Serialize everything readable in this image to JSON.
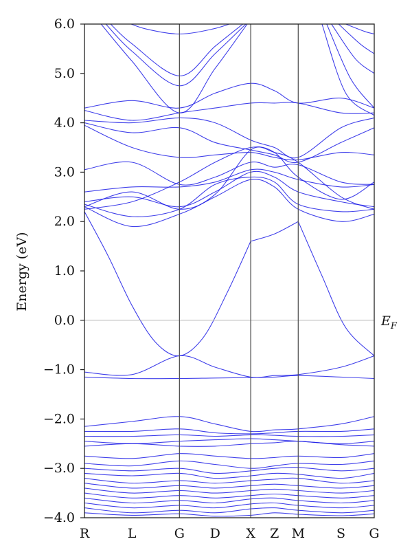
{
  "chart_data": {
    "type": "line",
    "title": "",
    "xlabel": "",
    "ylabel": "Energy (eV)",
    "ylim": [
      -4.0,
      6.0
    ],
    "yticks": [
      -4.0,
      -3.0,
      -2.0,
      -1.0,
      0.0,
      1.0,
      2.0,
      3.0,
      4.0,
      5.0,
      6.0
    ],
    "ytick_labels": [
      "−4.0",
      "−3.0",
      "−2.0",
      "−1.0",
      "0.0",
      "1.0",
      "2.0",
      "3.0",
      "4.0",
      "5.0",
      "6.0"
    ],
    "kpoints": [
      {
        "label": "R",
        "pos": 0.0
      },
      {
        "label": "L",
        "pos": 1.0
      },
      {
        "label": "G",
        "pos": 2.0
      },
      {
        "label": "D",
        "pos": 2.75
      },
      {
        "label": "X",
        "pos": 3.5
      },
      {
        "label": "Z",
        "pos": 4.0
      },
      {
        "label": "M",
        "pos": 4.5
      },
      {
        "label": "S",
        "pos": 5.4
      },
      {
        "label": "G",
        "pos": 6.1
      }
    ],
    "high_symmetry_lines": [
      2.0,
      3.5,
      4.5
    ],
    "fermi_level": 0.0,
    "fermi_label": "E_F",
    "grid": false,
    "band_color": "#1f1fe6",
    "series": [
      {
        "x": [
          0.0,
          0.5,
          1.0,
          1.5,
          2.0,
          2.5,
          3.0,
          3.5
        ],
        "y": [
          2.2,
          1.3,
          0.3,
          -0.45,
          -0.72,
          -0.35,
          0.55,
          1.6
        ]
      },
      {
        "x": [
          3.5,
          4.0,
          4.5
        ],
        "y": [
          1.6,
          1.75,
          2.0
        ]
      },
      {
        "x": [
          4.5,
          5.0,
          5.5,
          6.1
        ],
        "y": [
          2.0,
          0.9,
          -0.15,
          -0.72
        ]
      },
      {
        "x": [
          0.0,
          1.0,
          2.0,
          2.75,
          3.5,
          4.0,
          4.5,
          5.4,
          6.1
        ],
        "y": [
          -1.05,
          -1.1,
          -0.72,
          -0.95,
          -1.15,
          -1.12,
          -1.1,
          -0.95,
          -0.72
        ]
      },
      {
        "x": [
          0.0,
          1.0,
          2.0,
          2.75,
          3.5,
          4.0,
          4.5,
          5.4,
          6.1
        ],
        "y": [
          -1.15,
          -1.18,
          -1.18,
          -1.17,
          -1.16,
          -1.15,
          -1.12,
          -1.15,
          -1.18
        ]
      },
      {
        "x": [
          0.0,
          1.0,
          2.0,
          2.75,
          3.5,
          4.0,
          4.5,
          5.4,
          6.1
        ],
        "y": [
          -2.15,
          -2.05,
          -1.95,
          -2.1,
          -2.25,
          -2.22,
          -2.2,
          -2.1,
          -1.95
        ]
      },
      {
        "x": [
          0.0,
          1.0,
          2.0,
          2.75,
          3.5,
          4.0,
          4.5,
          5.4,
          6.1
        ],
        "y": [
          -2.25,
          -2.25,
          -2.2,
          -2.28,
          -2.3,
          -2.28,
          -2.25,
          -2.25,
          -2.2
        ]
      },
      {
        "x": [
          0.0,
          1.0,
          2.0,
          2.75,
          3.5,
          4.0,
          4.5,
          5.4,
          6.1
        ],
        "y": [
          -2.35,
          -2.35,
          -2.32,
          -2.35,
          -2.32,
          -2.33,
          -2.35,
          -2.35,
          -2.32
        ]
      },
      {
        "x": [
          0.0,
          1.0,
          2.0,
          2.75,
          3.5,
          4.0,
          4.5,
          5.4,
          6.1
        ],
        "y": [
          -2.45,
          -2.5,
          -2.45,
          -2.42,
          -2.4,
          -2.42,
          -2.45,
          -2.5,
          -2.45
        ]
      },
      {
        "x": [
          0.0,
          1.0,
          2.0,
          2.75,
          3.5,
          4.0,
          4.5,
          5.4,
          6.1
        ],
        "y": [
          -2.55,
          -2.5,
          -2.55,
          -2.55,
          -2.5,
          -2.48,
          -2.45,
          -2.52,
          -2.55
        ]
      },
      {
        "x": [
          0.0,
          1.0,
          2.0,
          2.75,
          3.5,
          4.0,
          4.5,
          5.4,
          6.1
        ],
        "y": [
          -2.75,
          -2.8,
          -2.7,
          -2.75,
          -2.8,
          -2.78,
          -2.75,
          -2.78,
          -2.7
        ]
      },
      {
        "x": [
          0.0,
          1.0,
          2.0,
          2.75,
          3.5,
          4.0,
          4.5,
          5.4,
          6.1
        ],
        "y": [
          -2.9,
          -2.95,
          -2.85,
          -2.92,
          -3.0,
          -2.95,
          -2.9,
          -2.92,
          -2.85
        ]
      },
      {
        "x": [
          0.0,
          1.0,
          2.0,
          2.75,
          3.5,
          4.0,
          4.5,
          5.4,
          6.1
        ],
        "y": [
          -3.0,
          -3.05,
          -3.0,
          -3.1,
          -3.05,
          -3.0,
          -2.98,
          -3.05,
          -3.0
        ]
      },
      {
        "x": [
          0.0,
          1.0,
          2.0,
          2.75,
          3.5,
          4.0,
          4.5,
          5.4,
          6.1
        ],
        "y": [
          -3.1,
          -3.15,
          -3.1,
          -3.2,
          -3.15,
          -3.1,
          -3.12,
          -3.2,
          -3.1
        ]
      },
      {
        "x": [
          0.0,
          1.0,
          2.0,
          2.75,
          3.5,
          4.0,
          4.5,
          5.4,
          6.1
        ],
        "y": [
          -3.2,
          -3.3,
          -3.25,
          -3.3,
          -3.25,
          -3.22,
          -3.2,
          -3.3,
          -3.25
        ]
      },
      {
        "x": [
          0.0,
          1.0,
          2.0,
          2.75,
          3.5,
          4.0,
          4.5,
          5.4,
          6.1
        ],
        "y": [
          -3.3,
          -3.4,
          -3.35,
          -3.4,
          -3.35,
          -3.32,
          -3.35,
          -3.4,
          -3.35
        ]
      },
      {
        "x": [
          0.0,
          1.0,
          2.0,
          2.75,
          3.5,
          4.0,
          4.5,
          5.4,
          6.1
        ],
        "y": [
          -3.4,
          -3.5,
          -3.45,
          -3.5,
          -3.45,
          -3.42,
          -3.45,
          -3.5,
          -3.45
        ]
      },
      {
        "x": [
          0.0,
          1.0,
          2.0,
          2.75,
          3.5,
          4.0,
          4.5,
          5.4,
          6.1
        ],
        "y": [
          -3.5,
          -3.6,
          -3.55,
          -3.6,
          -3.55,
          -3.52,
          -3.55,
          -3.6,
          -3.55
        ]
      },
      {
        "x": [
          0.0,
          1.0,
          2.0,
          2.75,
          3.5,
          4.0,
          4.5,
          5.4,
          6.1
        ],
        "y": [
          -3.6,
          -3.7,
          -3.65,
          -3.7,
          -3.62,
          -3.6,
          -3.65,
          -3.7,
          -3.65
        ]
      },
      {
        "x": [
          0.0,
          1.0,
          2.0,
          2.75,
          3.5,
          4.0,
          4.5,
          5.4,
          6.1
        ],
        "y": [
          -3.7,
          -3.8,
          -3.75,
          -3.8,
          -3.72,
          -3.7,
          -3.75,
          -3.8,
          -3.75
        ]
      },
      {
        "x": [
          0.0,
          1.0,
          2.0,
          2.75,
          3.5,
          4.0,
          4.5,
          5.4,
          6.1
        ],
        "y": [
          -3.8,
          -3.9,
          -3.85,
          -3.9,
          -3.82,
          -3.8,
          -3.85,
          -3.9,
          -3.85
        ]
      },
      {
        "x": [
          0.0,
          1.0,
          2.0,
          2.75,
          3.5,
          4.0,
          4.5,
          5.4,
          6.1
        ],
        "y": [
          -3.9,
          -3.95,
          -3.92,
          -3.97,
          -3.95,
          -3.9,
          -3.93,
          -3.96,
          -3.92
        ]
      },
      {
        "x": [
          0.0,
          1.0,
          2.0,
          2.75,
          3.5,
          4.0,
          4.5,
          5.4,
          6.1
        ],
        "y": [
          2.3,
          1.9,
          2.15,
          2.5,
          2.85,
          2.7,
          2.25,
          2.0,
          2.15
        ]
      },
      {
        "x": [
          0.0,
          1.0,
          2.0,
          2.75,
          3.5,
          4.0,
          4.5,
          5.4,
          6.1
        ],
        "y": [
          2.35,
          2.1,
          2.25,
          2.75,
          2.9,
          2.8,
          2.35,
          2.2,
          2.25
        ]
      },
      {
        "x": [
          0.0,
          1.0,
          2.0,
          2.75,
          3.5,
          4.0,
          4.5,
          5.4,
          6.1
        ],
        "y": [
          2.4,
          2.5,
          2.3,
          2.6,
          3.0,
          2.9,
          2.6,
          2.4,
          2.3
        ]
      },
      {
        "x": [
          0.0,
          1.0,
          2.0,
          2.75,
          3.5,
          4.0,
          4.5,
          5.4,
          6.1
        ],
        "y": [
          2.6,
          2.7,
          2.7,
          2.8,
          3.05,
          3.0,
          2.85,
          2.7,
          2.75
        ]
      },
      {
        "x": [
          0.0,
          1.0,
          2.0,
          2.75,
          3.5,
          4.0,
          4.5,
          5.4,
          6.1
        ],
        "y": [
          3.05,
          3.2,
          2.75,
          2.9,
          3.2,
          3.1,
          3.15,
          2.8,
          2.75
        ]
      },
      {
        "x": [
          0.0,
          1.0,
          2.0,
          2.75,
          3.5,
          4.0,
          4.5,
          5.4,
          6.1
        ],
        "y": [
          3.95,
          3.5,
          3.3,
          3.35,
          3.4,
          3.3,
          3.25,
          3.4,
          3.35
        ]
      },
      {
        "x": [
          0.0,
          1.0,
          2.0,
          2.75,
          3.5,
          4.0,
          4.5,
          5.4,
          6.1
        ],
        "y": [
          4.0,
          3.8,
          3.9,
          3.6,
          3.45,
          3.35,
          3.2,
          3.6,
          3.9
        ]
      },
      {
        "x": [
          0.0,
          1.0,
          2.0,
          2.75,
          3.5,
          4.0,
          4.5,
          5.4,
          6.1
        ],
        "y": [
          4.05,
          4.0,
          4.1,
          4.0,
          3.65,
          3.5,
          3.3,
          3.9,
          4.1
        ]
      },
      {
        "x": [
          0.0,
          1.0,
          2.0,
          2.75,
          3.5,
          4.0,
          4.5,
          5.4,
          6.1
        ],
        "y": [
          4.25,
          4.05,
          4.2,
          4.3,
          4.4,
          4.4,
          4.4,
          4.2,
          4.2
        ]
      },
      {
        "x": [
          0.0,
          1.0,
          2.0,
          2.75,
          3.5,
          4.0,
          4.5,
          5.4,
          6.1
        ],
        "y": [
          4.3,
          4.45,
          4.3,
          4.6,
          4.8,
          4.65,
          4.4,
          4.5,
          4.3
        ]
      },
      {
        "x": [
          0.0,
          1.0,
          2.0,
          2.75,
          3.5,
          4.0,
          4.5,
          5.4,
          6.1
        ],
        "y": [
          2.3,
          2.6,
          2.25,
          2.55,
          3.45,
          3.4,
          3.2,
          2.5,
          2.25
        ]
      },
      {
        "x": [
          0.0,
          1.0,
          2.0,
          2.75,
          3.5,
          4.0,
          4.5,
          5.4,
          6.1
        ],
        "y": [
          2.25,
          2.4,
          2.8,
          3.2,
          3.5,
          3.4,
          2.9,
          2.45,
          2.8
        ]
      },
      {
        "x": [
          0.35,
          1.0,
          2.0,
          2.75,
          3.5
        ],
        "y": [
          6.0,
          5.25,
          4.2,
          5.1,
          6.1
        ]
      },
      {
        "x": [
          0.45,
          1.0,
          2.0,
          2.75,
          3.45
        ],
        "y": [
          6.0,
          5.45,
          4.75,
          5.4,
          6.05
        ]
      },
      {
        "x": [
          0.55,
          1.0,
          2.0,
          2.75,
          3.4
        ],
        "y": [
          6.0,
          5.6,
          4.95,
          5.55,
          6.05
        ]
      },
      {
        "x": [
          0.85,
          1.3,
          2.0,
          2.7,
          3.2
        ],
        "y": [
          6.05,
          5.9,
          5.8,
          5.9,
          6.05
        ]
      },
      {
        "x": [
          5.0,
          5.5,
          6.1
        ],
        "y": [
          6.0,
          4.6,
          4.15
        ]
      },
      {
        "x": [
          5.1,
          5.6,
          6.1
        ],
        "y": [
          6.0,
          4.9,
          4.3
        ]
      },
      {
        "x": [
          5.2,
          5.7,
          6.1
        ],
        "y": [
          6.0,
          5.3,
          5.0
        ]
      },
      {
        "x": [
          5.35,
          5.8,
          6.1
        ],
        "y": [
          6.0,
          5.6,
          5.4
        ]
      },
      {
        "x": [
          5.5,
          5.9,
          6.1
        ],
        "y": [
          6.0,
          5.85,
          5.8
        ]
      }
    ]
  }
}
